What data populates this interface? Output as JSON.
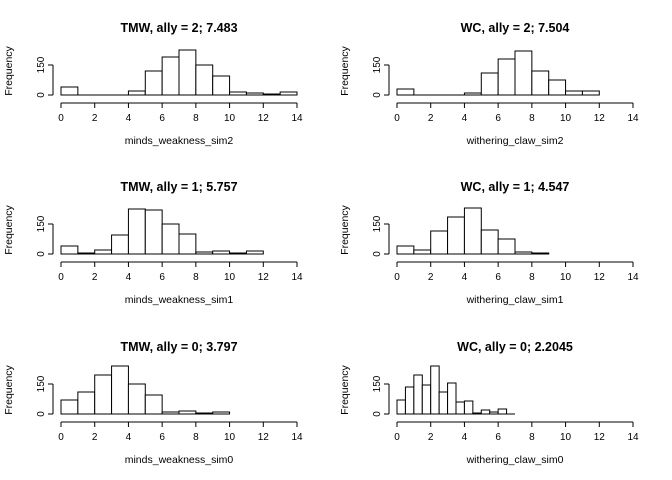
{
  "chart_data": [
    {
      "type": "bar",
      "title": "TMW, ally = 2; 7.483",
      "xlabel": "minds_weakness_sim2",
      "ylabel": "Frequency",
      "bin_width": 1,
      "bin_starts": [
        0,
        1,
        2,
        3,
        4,
        5,
        6,
        7,
        8,
        9,
        10,
        11,
        12,
        13
      ],
      "values": [
        40,
        0,
        0,
        0,
        20,
        120,
        190,
        225,
        150,
        95,
        15,
        10,
        5,
        15
      ],
      "xlim": [
        0,
        14
      ],
      "xticks": [
        0,
        2,
        4,
        6,
        8,
        10,
        12,
        14
      ],
      "ylim": [
        0,
        250
      ],
      "yticks": [
        0,
        150
      ]
    },
    {
      "type": "bar",
      "title": "WC, ally = 2; 7.504",
      "xlabel": "withering_claw_sim2",
      "ylabel": "Frequency",
      "bin_width": 1,
      "bin_starts": [
        0,
        1,
        2,
        3,
        4,
        5,
        6,
        7,
        8,
        9,
        10,
        11
      ],
      "values": [
        30,
        0,
        0,
        0,
        10,
        110,
        180,
        220,
        120,
        75,
        20,
        20
      ],
      "xlim": [
        0,
        14
      ],
      "xticks": [
        0,
        2,
        4,
        6,
        8,
        10,
        12,
        14
      ],
      "ylim": [
        0,
        250
      ],
      "yticks": [
        0,
        150
      ]
    },
    {
      "type": "bar",
      "title": "TMW, ally = 1; 5.757",
      "xlabel": "minds_weakness_sim1",
      "ylabel": "Frequency",
      "bin_width": 1,
      "bin_starts": [
        0,
        1,
        2,
        3,
        4,
        5,
        6,
        7,
        8,
        9,
        10,
        11
      ],
      "values": [
        40,
        5,
        20,
        95,
        225,
        220,
        150,
        100,
        10,
        15,
        5,
        15
      ],
      "xlim": [
        0,
        14
      ],
      "xticks": [
        0,
        2,
        4,
        6,
        8,
        10,
        12,
        14
      ],
      "ylim": [
        0,
        250
      ],
      "yticks": [
        0,
        150
      ]
    },
    {
      "type": "bar",
      "title": "WC, ally = 1; 4.547",
      "xlabel": "withering_claw_sim1",
      "ylabel": "Frequency",
      "bin_width": 1,
      "bin_starts": [
        0,
        1,
        2,
        3,
        4,
        5,
        6,
        7,
        8
      ],
      "values": [
        40,
        20,
        115,
        185,
        230,
        120,
        75,
        10,
        5
      ],
      "xlim": [
        0,
        14
      ],
      "xticks": [
        0,
        2,
        4,
        6,
        8,
        10,
        12,
        14
      ],
      "ylim": [
        0,
        250
      ],
      "yticks": [
        0,
        150
      ]
    },
    {
      "type": "bar",
      "title": "TMW, ally = 0; 3.797",
      "xlabel": "minds_weakness_sim0",
      "ylabel": "Frequency",
      "bin_width": 1,
      "bin_starts": [
        0,
        1,
        2,
        3,
        4,
        5,
        6,
        7,
        8,
        9
      ],
      "values": [
        70,
        110,
        195,
        240,
        150,
        95,
        10,
        15,
        5,
        10
      ],
      "xlim": [
        0,
        14
      ],
      "xticks": [
        0,
        2,
        4,
        6,
        8,
        10,
        12,
        14
      ],
      "ylim": [
        0,
        250
      ],
      "yticks": [
        0,
        150
      ]
    },
    {
      "type": "bar",
      "title": "WC, ally = 0; 2.2045",
      "xlabel": "withering_claw_sim0",
      "ylabel": "Frequency",
      "bin_width": 0.5,
      "bin_starts": [
        0,
        0.5,
        1,
        1.5,
        2,
        2.5,
        3,
        3.5,
        4,
        4.5,
        5,
        5.5,
        6,
        6.5
      ],
      "values": [
        70,
        135,
        195,
        145,
        240,
        110,
        155,
        60,
        65,
        5,
        20,
        10,
        25,
        0
      ],
      "xlim": [
        0,
        14
      ],
      "xticks": [
        0,
        2,
        4,
        6,
        8,
        10,
        12,
        14
      ],
      "ylim": [
        0,
        250
      ],
      "yticks": [
        0,
        150
      ]
    }
  ]
}
